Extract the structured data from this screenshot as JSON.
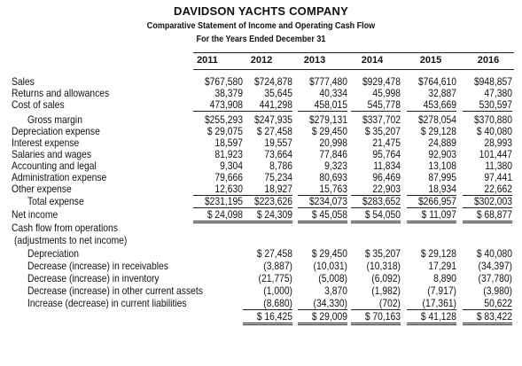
{
  "header": {
    "company": "DAVIDSON YACHTS COMPANY",
    "title": "Comparative Statement of Income and Operating Cash Flow",
    "period": "For the Years Ended December 31"
  },
  "years": [
    "2011",
    "2012",
    "2013",
    "2014",
    "2015",
    "2016"
  ],
  "rows": [
    {
      "label": "Sales",
      "values": [
        "$767,580",
        "$724,878",
        "$777,480",
        "$929,478",
        "$764,610",
        "$948,857"
      ]
    },
    {
      "label": "Returns and allowances",
      "values": [
        "38,379",
        "35,645",
        "40,334",
        "45,998",
        "32,887",
        "47,380"
      ]
    },
    {
      "label": "Cost of sales",
      "values": [
        "473,908",
        "441,298",
        "458,015",
        "545,778",
        "453,669",
        "530,597"
      ]
    },
    {
      "label": "Gross margin",
      "values": [
        "$255,293",
        "$247,935",
        "$279,131",
        "$337,702",
        "$278,054",
        "$370,880"
      ]
    },
    {
      "label": "Depreciation expense",
      "values": [
        "$ 29,075",
        "$ 27,458",
        "$ 29,450",
        "$ 35,207",
        "$ 29,128",
        "$ 40,080"
      ]
    },
    {
      "label": "Interest expense",
      "values": [
        "18,597",
        "19,557",
        "20,998",
        "21,475",
        "24,889",
        "28,993"
      ]
    },
    {
      "label": "Salaries and wages",
      "values": [
        "81,923",
        "73,664",
        "77,846",
        "95,764",
        "92,903",
        "101,447"
      ]
    },
    {
      "label": "Accounting and legal",
      "values": [
        "9,304",
        "8,786",
        "9,323",
        "11,834",
        "13,108",
        "11,380"
      ]
    },
    {
      "label": "Administration expense",
      "values": [
        "79,666",
        "75,234",
        "80,693",
        "96,469",
        "87,995",
        "97,441"
      ]
    },
    {
      "label": "Other expense",
      "values": [
        "12,630",
        "18,927",
        "15,763",
        "22,903",
        "18,934",
        "22,662"
      ]
    },
    {
      "label": "Total expense",
      "values": [
        "$231,195",
        "$223,626",
        "$234,073",
        "$283,652",
        "$266,957",
        "$302,003"
      ]
    },
    {
      "label": "Net income",
      "values": [
        "$ 24,098",
        "$ 24,309",
        "$ 45,058",
        "$ 54,050",
        "$ 11,097",
        "$ 68,877"
      ]
    },
    {
      "label": "Cash flow from operations",
      "values": [
        "",
        "",
        "",
        "",
        "",
        ""
      ]
    },
    {
      "label": "(adjustments to net income)",
      "values": [
        "",
        "",
        "",
        "",
        "",
        ""
      ]
    },
    {
      "label": "Depreciation",
      "values": [
        "",
        "$ 27,458",
        "$ 29,450",
        "$ 35,207",
        "$ 29,128",
        "$ 40,080"
      ]
    },
    {
      "label": "Decrease (increase) in receivables",
      "values": [
        "",
        "(3,887)",
        "(10,031)",
        "(10,318)",
        "17,291",
        "(34,397)"
      ]
    },
    {
      "label": "Decrease (increase) in inventory",
      "values": [
        "",
        "(21,775)",
        "(5,008)",
        "(6,092)",
        "8,890",
        "(37,780)"
      ]
    },
    {
      "label": "Decrease (increase) in other current assets",
      "values": [
        "",
        "(1,000)",
        "3,870",
        "(1,982)",
        "(7,917)",
        "(3,980)"
      ]
    },
    {
      "label": "Increase (decrease) in current liabilities",
      "values": [
        "",
        "(8,680)",
        "(34,330)",
        "(702)",
        "(17,361)",
        "50,622"
      ]
    },
    {
      "label": "",
      "values": [
        "",
        "$ 16,425",
        "$ 29,009",
        "$ 70,163",
        "$ 41,128",
        "$ 83,422"
      ]
    }
  ]
}
